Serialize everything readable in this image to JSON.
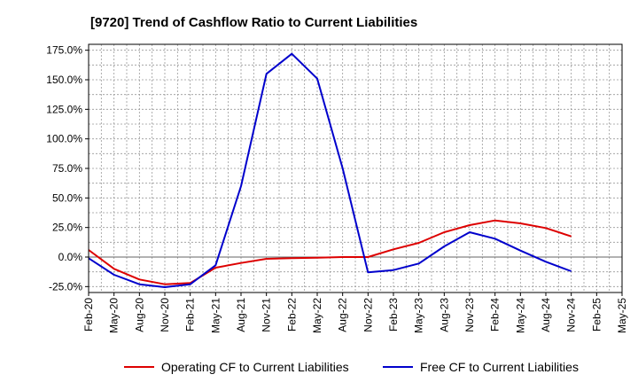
{
  "chart_data": {
    "type": "line",
    "title": "[9720]  Trend of Cashflow Ratio to Current Liabilities",
    "xlabel": "",
    "ylabel": "",
    "categories": [
      "Feb-20",
      "May-20",
      "Aug-20",
      "Nov-20",
      "Feb-21",
      "May-21",
      "Aug-21",
      "Nov-21",
      "Feb-22",
      "May-22",
      "Aug-22",
      "Nov-22",
      "Feb-23",
      "May-23",
      "Aug-23",
      "Nov-23",
      "Feb-24",
      "May-24",
      "Aug-24",
      "Nov-24",
      "Feb-25",
      "May-25"
    ],
    "x_tick_labels": [
      "Feb-20",
      "May-20",
      "Aug-20",
      "Nov-20",
      "Feb-21",
      "May-21",
      "Aug-21",
      "Nov-21",
      "Feb-22",
      "May-22",
      "Aug-22",
      "Nov-22",
      "Feb-23",
      "May-23",
      "Aug-23",
      "Nov-23",
      "Feb-24",
      "May-24",
      "Aug-24",
      "Nov-24",
      "Feb-25",
      "May-25"
    ],
    "y_tick_labels": [
      "175.0%",
      "150.0%",
      "125.0%",
      "100.0%",
      "75.0%",
      "50.0%",
      "25.0%",
      "0.0%",
      "-25.0%"
    ],
    "y_ticks": [
      175,
      150,
      125,
      100,
      75,
      50,
      25,
      0,
      -25
    ],
    "ylim": [
      -30,
      180
    ],
    "grid": true,
    "legend_position": "bottom",
    "series": [
      {
        "name": "Operating CF to Current Liabilities",
        "color": "#dd0000",
        "values": [
          6,
          -10,
          -19,
          -23,
          -22,
          -9,
          -5,
          -1.5,
          -1,
          -0.5,
          0,
          0,
          6.5,
          12,
          21,
          27,
          31,
          28.5,
          24.5,
          17.5,
          null,
          null
        ]
      },
      {
        "name": "Free CF to Current Liabilities",
        "color": "#0000cc",
        "values": [
          -1,
          -15,
          -23,
          -25.5,
          -23,
          -7,
          60,
          155,
          172,
          151,
          75,
          -13,
          -11,
          -5.5,
          9,
          21,
          15.5,
          5.5,
          -4,
          -12,
          null,
          null
        ]
      }
    ]
  }
}
